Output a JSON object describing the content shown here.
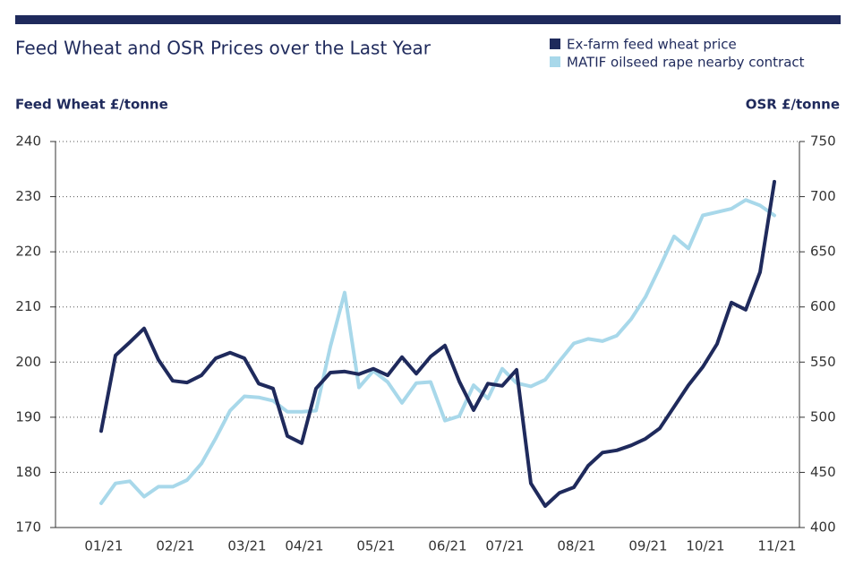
{
  "chart_data": {
    "type": "line",
    "title": "Feed Wheat and OSR Prices over the Last Year",
    "ylabel": "Feed Wheat £/tonne",
    "y2label": "OSR £/tonne",
    "categories": [
      "01/21",
      null,
      null,
      null,
      null,
      "02/21",
      null,
      null,
      null,
      null,
      "03/21",
      null,
      null,
      null,
      "04/21",
      null,
      null,
      null,
      null,
      "05/21",
      null,
      null,
      null,
      null,
      "06/21",
      null,
      null,
      null,
      "07/21",
      null,
      null,
      null,
      null,
      "08/21",
      null,
      null,
      null,
      null,
      "09/21",
      null,
      null,
      null,
      "10/21",
      null,
      null,
      null,
      null,
      "11/21"
    ],
    "series": [
      {
        "name": "Ex-farm feed wheat price",
        "color": "#1f2a5c",
        "axis": "y",
        "values": [
          187.5,
          201.2,
          203.6,
          206.1,
          200.4,
          196.6,
          196.3,
          197.6,
          200.7,
          201.7,
          200.7,
          196.1,
          195.2,
          186.6,
          185.3,
          195.2,
          198.1,
          198.3,
          197.8,
          198.8,
          197.6,
          200.9,
          197.9,
          201.0,
          203.0,
          196.5,
          191.3,
          196.1,
          195.7,
          198.6,
          178.0,
          173.9,
          176.3,
          177.3,
          181.2,
          183.6,
          184.0,
          184.9,
          186.1,
          188.0,
          191.9,
          195.8,
          199.1,
          203.3,
          210.8,
          209.5,
          216.3,
          232.7
        ]
      },
      {
        "name": "MATIF oilseed rape nearby contract",
        "color": "#a8d8ea",
        "axis": "y2",
        "values": [
          422,
          440,
          442,
          428,
          437,
          437,
          443,
          458,
          481,
          506,
          519,
          518,
          515,
          505,
          505,
          506,
          564,
          613,
          527,
          542,
          532,
          513,
          531,
          532,
          497,
          501,
          529,
          517,
          544,
          531,
          528,
          534,
          551,
          567,
          571,
          569,
          574,
          589,
          609,
          636,
          664,
          653,
          683,
          686,
          689,
          697,
          692,
          683
        ]
      }
    ],
    "ylim": [
      170,
      240
    ],
    "yticks": [
      170,
      180,
      190,
      200,
      210,
      220,
      230,
      240
    ],
    "y2lim": [
      400,
      750
    ],
    "y2ticks": [
      400,
      450,
      500,
      550,
      600,
      650,
      700,
      750
    ],
    "grid": true,
    "legend": "top right"
  }
}
